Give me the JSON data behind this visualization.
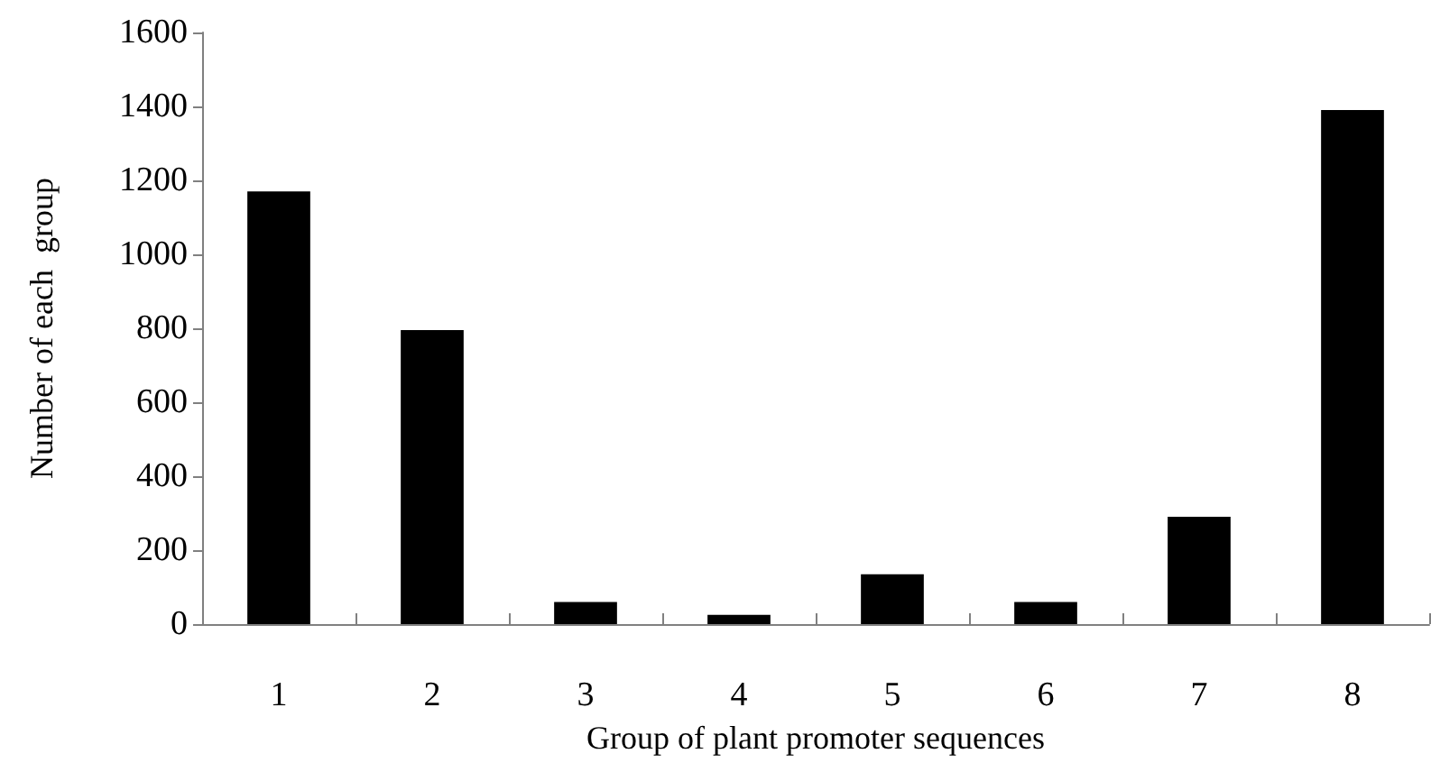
{
  "chart_data": {
    "type": "bar",
    "xlabel": "Group of plant promoter sequences",
    "ylabel": "Number of each  group",
    "categories": [
      "1",
      "2",
      "3",
      "4",
      "5",
      "6",
      "7",
      "8"
    ],
    "values": [
      1170,
      795,
      60,
      25,
      135,
      60,
      290,
      1390
    ],
    "color": "#000000",
    "ylim": [
      0,
      1600
    ],
    "yticks": [
      0,
      200,
      400,
      600,
      800,
      1000,
      1200,
      1400,
      1600
    ],
    "grid": false
  }
}
